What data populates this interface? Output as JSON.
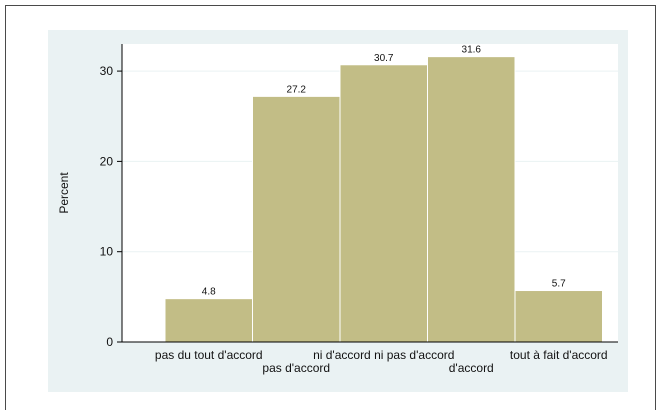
{
  "chart_data": {
    "type": "bar",
    "categories": [
      "pas du tout d'accord",
      "pas d'accord",
      "ni d'accord ni pas d'accord",
      "d'accord",
      "tout à fait d'accord"
    ],
    "category_label_lines": [
      [
        "pas du tout d'accord"
      ],
      [
        "pas d'accord"
      ],
      [
        "ni d'accord ni pas d'accord"
      ],
      [
        "d'accord"
      ],
      [
        "tout à fait d'accord"
      ]
    ],
    "values": [
      4.8,
      27.2,
      30.7,
      31.6,
      5.7
    ],
    "value_labels": [
      "4.8",
      "27.2",
      "30.7",
      "31.6",
      "5.7"
    ],
    "ylabel": "Percent",
    "xlabel": "",
    "ylim": [
      0,
      33
    ],
    "yticks": [
      0,
      10,
      20,
      30
    ],
    "grid": true,
    "colors": {
      "bar_fill": "#c2bd86",
      "bar_stroke": "#ffffff",
      "plot_bg": "#ffffff",
      "frame_bg": "#eaf2f3",
      "grid": "#eaf2f3",
      "axis": "#000000",
      "outer_border": "#4a4a4a"
    }
  }
}
